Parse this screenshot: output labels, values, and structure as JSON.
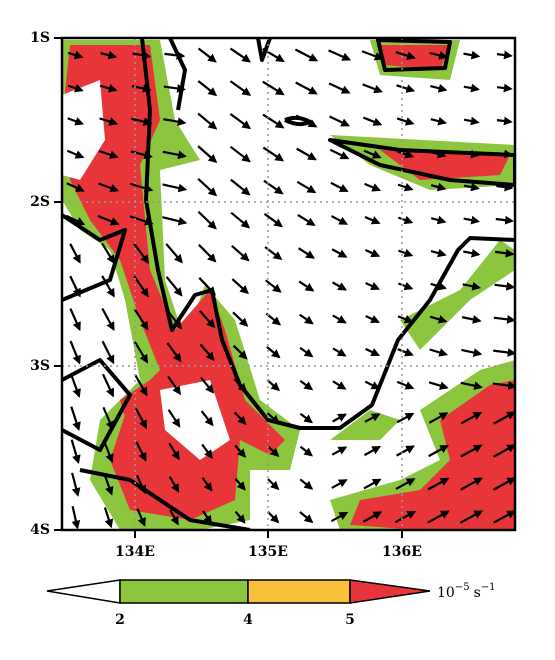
{
  "axes": {
    "y_labels": [
      "1S",
      "2S",
      "3S",
      "4S"
    ],
    "x_labels": [
      "134E",
      "135E",
      "136E"
    ]
  },
  "colorbar": {
    "labels": [
      "2",
      "4",
      "5"
    ],
    "unit": {
      "base": "10",
      "exponent": "−5",
      "symbol": "s",
      "symbol_exponent": "−1"
    }
  }
}
